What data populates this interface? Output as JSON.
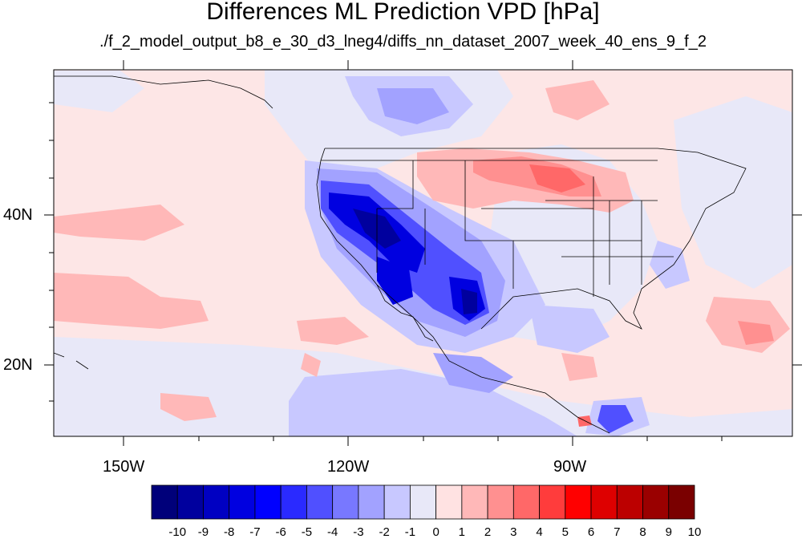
{
  "title": "Differences ML Prediction VPD [hPa]",
  "subtitle": "./f_2_model_output_b8_e_30_d3_lneg4/diffs_nn_dataset_2007_week_40_ens_9_f_2",
  "axes": {
    "lat_labels": [
      "40N",
      "20N"
    ],
    "lon_labels": [
      "150W",
      "120W",
      "90W"
    ]
  },
  "colorbar": {
    "labels": [
      "-10",
      "-9",
      "-8",
      "-7",
      "-6",
      "-5",
      "-4",
      "-3",
      "-2",
      "-1",
      "0",
      "1",
      "2",
      "3",
      "4",
      "5",
      "6",
      "7",
      "8",
      "9",
      "10"
    ],
    "colors": [
      "#00007a",
      "#00009e",
      "#0000c2",
      "#0000e0",
      "#0000ff",
      "#2a2aff",
      "#5050ff",
      "#7878ff",
      "#a2a2ff",
      "#c8c8ff",
      "#e8e8f8",
      "#ffe2e2",
      "#ffb8b8",
      "#ff9090",
      "#ff6868",
      "#ff3c3c",
      "#ff0000",
      "#de0000",
      "#bc0000",
      "#9a0000",
      "#7a0000"
    ]
  },
  "colors": {
    "ocean_background": "#fde6e6",
    "coastline": "#000000"
  }
}
